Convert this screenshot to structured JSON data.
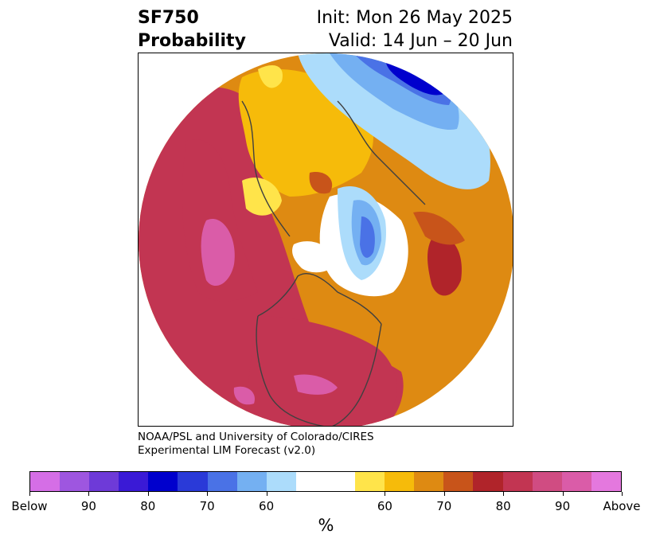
{
  "header": {
    "title_line1": "SF750",
    "title_line2": "Probability",
    "init_text": "Init: Mon 26 May 2025",
    "valid_text": "Valid: 14 Jun – 20 Jun"
  },
  "credit": {
    "line1": "NOAA/PSL and University of Colorado/CIRES",
    "line2": "Experimental LIM Forecast (v2.0)"
  },
  "colorbar": {
    "colors": [
      "#d56ee6",
      "#9e56e0",
      "#6e3ad8",
      "#3a1ad6",
      "#0000cd",
      "#2a3ad8",
      "#4a72e6",
      "#74b0f2",
      "#acdcfb",
      "#ffffff",
      "#ffffff",
      "#ffe44a",
      "#f6bb0a",
      "#de8a12",
      "#c8541a",
      "#b0242a",
      "#c23552",
      "#d04c82",
      "#da5ca8",
      "#e478de"
    ],
    "tick_labels": [
      "Below",
      "90",
      "80",
      "70",
      "60",
      "60",
      "70",
      "80",
      "90",
      "Above"
    ],
    "unit_label": "%"
  },
  "map": {
    "projection": "north polar stereographic",
    "colors": {
      "pink": "#da5ca8",
      "magenta_red": "#c23552",
      "dark_red": "#b0242a",
      "red_orange": "#c8541a",
      "orange": "#de8a12",
      "gold": "#f6bb0a",
      "yellow": "#ffe44a",
      "light_blue": "#acdcfb",
      "blue_mid": "#74b0f2",
      "blue": "#4a72e6",
      "dark_blue": "#0000cd",
      "coast": "#404040"
    }
  }
}
